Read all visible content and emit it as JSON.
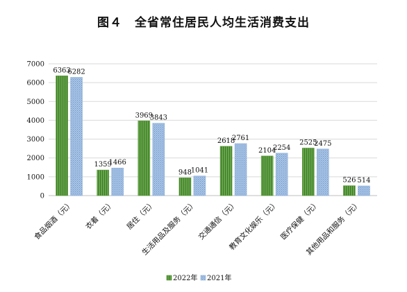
{
  "chart_data": {
    "type": "bar",
    "title": "图４　全省常住居民人均生活消费支出",
    "categories": [
      "食品烟酒（元）",
      "衣着（元）",
      "居住（元）",
      "生活用品及服务（元）",
      "交通通信（元）",
      "教育文化娱乐（元）",
      "医疗保健（元）",
      "其他用品和服务（元）"
    ],
    "series": [
      {
        "name": "2022年",
        "values": [
          6363,
          1359,
          3969,
          948,
          2618,
          2104,
          2525,
          526
        ],
        "color": "#5b9b3a",
        "pattern": "vertical-stripes"
      },
      {
        "name": "2021年",
        "values": [
          6282,
          1466,
          3843,
          1041,
          2761,
          2254,
          2475,
          514
        ],
        "color": "#8fb3dc",
        "pattern": "dotted"
      }
    ],
    "data_labels": [
      [
        "6363",
        "1359",
        "3969",
        "948",
        "2618",
        "2104",
        "2525",
        "526"
      ],
      [
        "6282",
        "1466",
        "3843",
        "1041",
        "2761",
        "2254",
        "2475",
        "514"
      ]
    ],
    "yticks": [
      "0",
      "1000",
      "2000",
      "3000",
      "4000",
      "5000",
      "6000",
      "7000"
    ],
    "ylim": [
      0,
      7000
    ],
    "grid": true,
    "legend": "bottom"
  }
}
